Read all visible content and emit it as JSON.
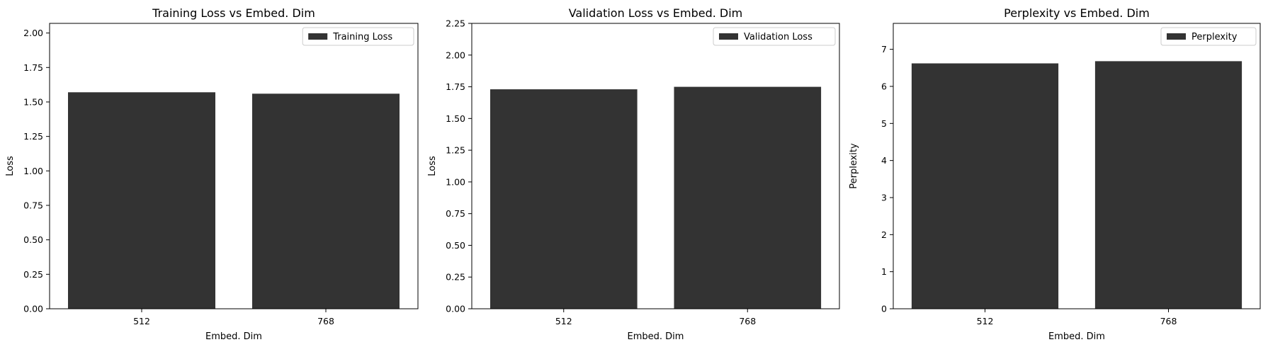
{
  "chart_data": [
    {
      "type": "bar",
      "title": "Training Loss vs Embed. Dim",
      "xlabel": "Embed. Dim",
      "ylabel": "Loss",
      "categories": [
        "512",
        "768"
      ],
      "series": [
        {
          "name": "Training Loss",
          "values": [
            1.57,
            1.56
          ]
        }
      ],
      "ylim": [
        0,
        2.07
      ],
      "yticks": [
        0.0,
        0.25,
        0.5,
        0.75,
        1.0,
        1.25,
        1.5,
        1.75,
        2.0
      ],
      "ytick_labels": [
        "0.00",
        "0.25",
        "0.50",
        "0.75",
        "1.00",
        "1.25",
        "1.50",
        "1.75",
        "2.00"
      ],
      "grid": false,
      "legend": "top-right",
      "bar_color": "#333333"
    },
    {
      "type": "bar",
      "title": "Validation Loss vs Embed. Dim",
      "xlabel": "Embed. Dim",
      "ylabel": "Loss",
      "categories": [
        "512",
        "768"
      ],
      "series": [
        {
          "name": "Validation Loss",
          "values": [
            1.73,
            1.75
          ]
        }
      ],
      "ylim": [
        0,
        2.25
      ],
      "yticks": [
        0.0,
        0.25,
        0.5,
        0.75,
        1.0,
        1.25,
        1.5,
        1.75,
        2.0,
        2.25
      ],
      "ytick_labels": [
        "0.00",
        "0.25",
        "0.50",
        "0.75",
        "1.00",
        "1.25",
        "1.50",
        "1.75",
        "2.00",
        "2.25"
      ],
      "grid": false,
      "legend": "top-right",
      "bar_color": "#333333"
    },
    {
      "type": "bar",
      "title": "Perplexity vs Embed. Dim",
      "xlabel": "Embed. Dim",
      "ylabel": "Perplexity",
      "categories": [
        "512",
        "768"
      ],
      "series": [
        {
          "name": "Perplexity",
          "values": [
            6.62,
            6.68
          ]
        }
      ],
      "ylim": [
        0,
        7.7
      ],
      "yticks": [
        0,
        1,
        2,
        3,
        4,
        5,
        6,
        7
      ],
      "ytick_labels": [
        "0",
        "1",
        "2",
        "3",
        "4",
        "5",
        "6",
        "7"
      ],
      "grid": false,
      "legend": "top-right",
      "bar_color": "#333333"
    }
  ]
}
